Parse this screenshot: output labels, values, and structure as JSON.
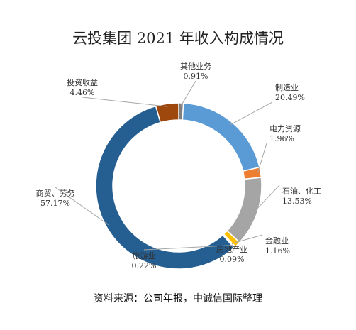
{
  "chart_data": {
    "type": "pie",
    "variant": "donut",
    "title": "云投集团 2021 年收入构成情况",
    "source": "资料来源：公司年报，中诚信国际整理",
    "slices": [
      {
        "label": "其他业务",
        "value": 0.91,
        "display": "0.91%",
        "color": "#7f7f7f"
      },
      {
        "label": "制造业",
        "value": 20.49,
        "display": "20.49%",
        "color": "#5b9bd5"
      },
      {
        "label": "电力资源",
        "value": 1.96,
        "display": "1.96%",
        "color": "#ed7d31"
      },
      {
        "label": "石油、化工",
        "value": 13.53,
        "display": "13.53%",
        "color": "#a5a5a5"
      },
      {
        "label": "金融业",
        "value": 1.16,
        "display": "1.16%",
        "color": "#ffc000"
      },
      {
        "label": "房地产业",
        "value": 0.09,
        "display": "0.09%",
        "color": "#4472c4"
      },
      {
        "label": "旅游业",
        "value": 0.22,
        "display": "0.22%",
        "color": "#70ad47"
      },
      {
        "label": "商贸、劳务",
        "value": 57.17,
        "display": "57.17%",
        "color": "#255e91"
      },
      {
        "label": "投资收益",
        "value": 4.46,
        "display": "4.46%",
        "color": "#9e480e"
      }
    ]
  }
}
